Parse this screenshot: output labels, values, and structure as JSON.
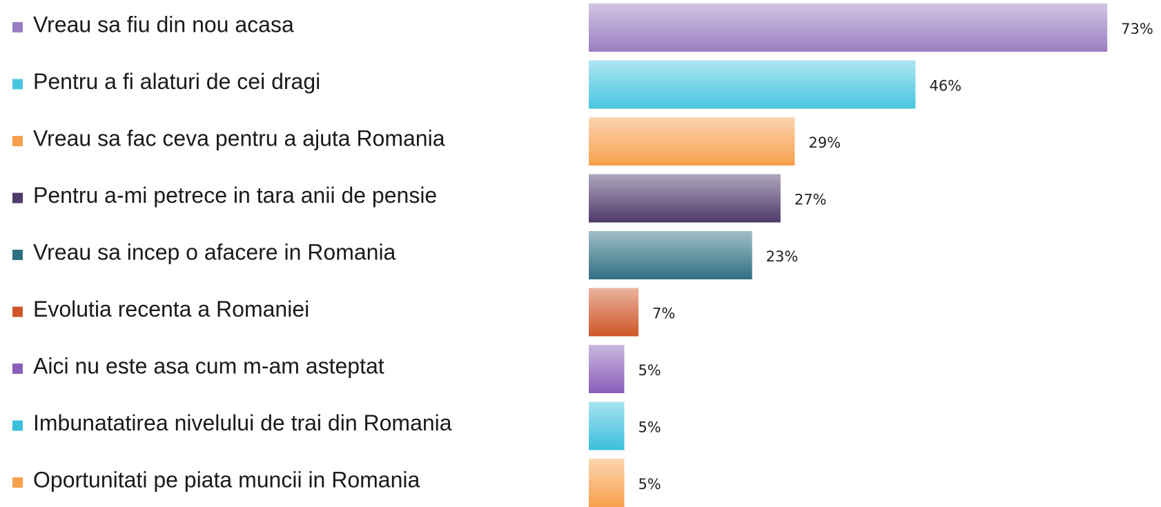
{
  "chart_data": {
    "type": "bar",
    "orientation": "horizontal",
    "categories": [
      "Vreau sa fiu din nou acasa",
      "Pentru a fi alaturi de cei dragi",
      "Vreau sa fac ceva pentru a ajuta Romania",
      "Pentru a-mi petrece in tara anii de pensie",
      "Vreau sa incep o afacere in Romania",
      "Evolutia recenta a Romaniei",
      "Aici nu este asa cum m-am asteptat",
      "Imbunatatirea nivelului de trai din Romania",
      "Oportunitati pe piata muncii in Romania"
    ],
    "values": [
      73,
      46,
      29,
      27,
      23,
      7,
      5,
      5,
      5
    ],
    "value_labels": [
      "73%",
      "46%",
      "29%",
      "27%",
      "23%",
      "7%",
      "5%",
      "5%",
      "5%"
    ],
    "colors": [
      "#9a7ec2",
      "#48c6e0",
      "#f7a04c",
      "#4e3a6b",
      "#2f6f82",
      "#cf5628",
      "#8a5fba",
      "#3bbfdc",
      "#f7a04c"
    ]
  }
}
